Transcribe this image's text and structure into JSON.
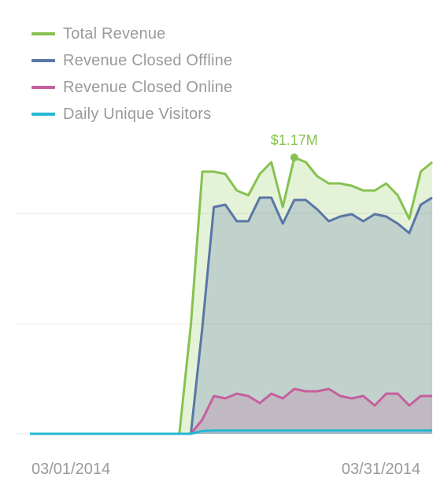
{
  "colors": {
    "total": "#86c24f",
    "offline": "#5a76a6",
    "online": "#c65e9f",
    "visitors": "#24b8d2",
    "grid": "#e8e8e8",
    "axis_text": "#9a9a9a"
  },
  "chart_data": {
    "type": "area",
    "title": "",
    "xlabel": "",
    "ylabel": "",
    "ylim": [
      0,
      1.4
    ],
    "y_unit": "$M",
    "grid": true,
    "legend_position": "top-left",
    "x_tick_labels": [
      "03/01/2014",
      "03/31/2014"
    ],
    "x_start": "2014-02-19",
    "x_end": "2014-04-02",
    "annotation": {
      "series": "Total Revenue",
      "date": "2014-03-08",
      "label": "$1.17M"
    },
    "series": [
      {
        "name": "Total Revenue",
        "values": [
          0,
          0,
          0,
          0,
          0,
          0,
          0,
          0,
          0,
          0,
          0,
          0,
          0,
          0,
          0.46,
          1.11,
          1.11,
          1.1,
          1.03,
          1.01,
          1.1,
          1.15,
          0.96,
          1.17,
          1.15,
          1.09,
          1.06,
          1.06,
          1.05,
          1.03,
          1.03,
          1.06,
          1.01,
          0.91,
          1.11,
          1.15
        ]
      },
      {
        "name": "Revenue Closed Offline",
        "values": [
          0,
          0,
          0,
          0,
          0,
          0,
          0,
          0,
          0,
          0,
          0,
          0,
          0,
          0,
          0,
          0.45,
          0.96,
          0.97,
          0.9,
          0.9,
          1.0,
          1.0,
          0.89,
          0.99,
          0.99,
          0.95,
          0.9,
          0.92,
          0.93,
          0.9,
          0.93,
          0.92,
          0.89,
          0.85,
          0.97,
          1.0
        ]
      },
      {
        "name": "Revenue Closed Online",
        "values": [
          0,
          0,
          0,
          0,
          0,
          0,
          0,
          0,
          0,
          0,
          0,
          0,
          0,
          0,
          0,
          0.06,
          0.16,
          0.15,
          0.17,
          0.16,
          0.13,
          0.17,
          0.15,
          0.19,
          0.18,
          0.18,
          0.19,
          0.16,
          0.15,
          0.16,
          0.12,
          0.17,
          0.17,
          0.12,
          0.16,
          0.16
        ]
      },
      {
        "name": "Daily Unique Visitors",
        "values": [
          0,
          0,
          0,
          0,
          0,
          0,
          0,
          0,
          0,
          0,
          0,
          0,
          0,
          0,
          0,
          0.012,
          0.014,
          0.014,
          0.014,
          0.014,
          0.014,
          0.014,
          0.014,
          0.014,
          0.014,
          0.014,
          0.014,
          0.014,
          0.014,
          0.014,
          0.014,
          0.014,
          0.014,
          0.014,
          0.014,
          0.014
        ]
      }
    ]
  }
}
